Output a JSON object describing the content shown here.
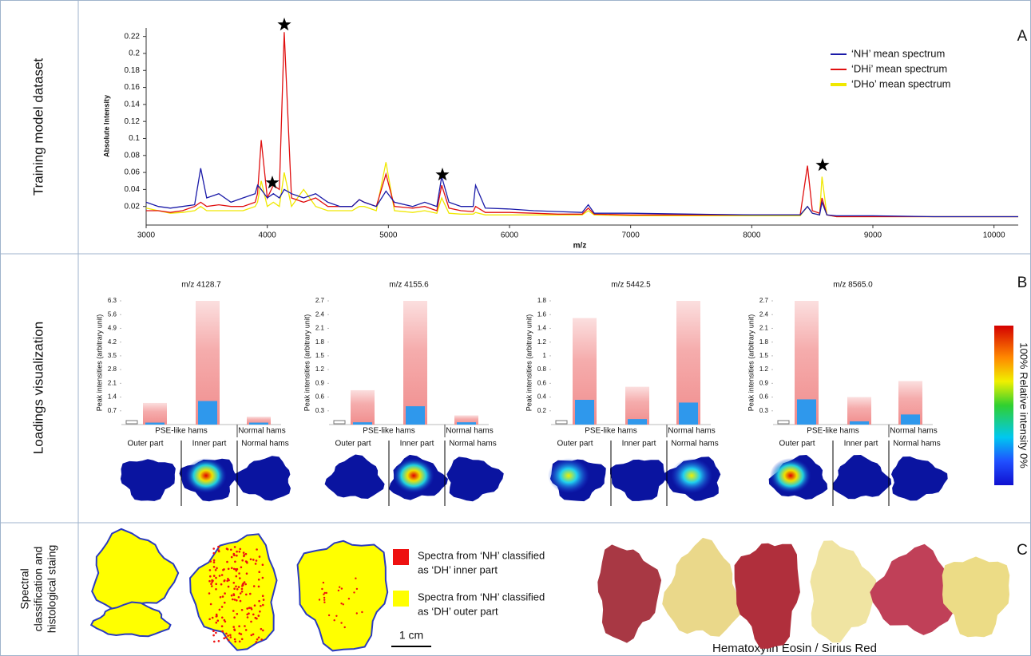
{
  "rows": [
    {
      "label": [
        "Training model dataset"
      ],
      "letter": "A"
    },
    {
      "label": [
        "Loadings visualization"
      ],
      "letter": "B"
    },
    {
      "label": [
        "Spectral",
        "classification and",
        "histological staing"
      ],
      "letter": "C"
    }
  ],
  "chart_data": [
    {
      "type": "line",
      "x_label": "m/z",
      "y_label": "Absolute Intensity",
      "xlim": [
        3000,
        10200
      ],
      "ylim": [
        0,
        0.23
      ],
      "xticks": [
        3000,
        4000,
        5000,
        6000,
        7000,
        8000,
        9000,
        10000
      ],
      "yticks": [
        0.02,
        0.04,
        0.06,
        0.08,
        0.1,
        0.12,
        0.14,
        0.16,
        0.18,
        0.2,
        0.22
      ],
      "x": [
        3000,
        3100,
        3200,
        3300,
        3400,
        3450,
        3500,
        3600,
        3700,
        3800,
        3900,
        3920,
        3950,
        4000,
        4050,
        4100,
        4140,
        4200,
        4300,
        4400,
        4500,
        4600,
        4700,
        4760,
        4800,
        4900,
        4980,
        5050,
        5200,
        5300,
        5400,
        5440,
        5500,
        5600,
        5700,
        5720,
        5800,
        6000,
        6200,
        6400,
        6600,
        6650,
        6700,
        7000,
        7500,
        8000,
        8400,
        8460,
        8500,
        8560,
        8580,
        8620,
        8700,
        9000,
        9500,
        10000,
        10200
      ],
      "series": [
        {
          "name": "‘NH’ mean spectrum",
          "color": "#1a1aa8",
          "values": [
            0.025,
            0.02,
            0.018,
            0.02,
            0.022,
            0.065,
            0.03,
            0.035,
            0.025,
            0.03,
            0.035,
            0.045,
            0.04,
            0.03,
            0.035,
            0.03,
            0.04,
            0.035,
            0.03,
            0.035,
            0.025,
            0.02,
            0.02,
            0.028,
            0.025,
            0.02,
            0.038,
            0.025,
            0.02,
            0.025,
            0.02,
            0.055,
            0.025,
            0.02,
            0.02,
            0.045,
            0.018,
            0.017,
            0.015,
            0.014,
            0.013,
            0.022,
            0.012,
            0.012,
            0.011,
            0.01,
            0.01,
            0.02,
            0.012,
            0.01,
            0.025,
            0.01,
            0.009,
            0.009,
            0.008,
            0.008,
            0.008
          ]
        },
        {
          "name": "‘DHi’ mean spectrum",
          "color": "#e01010",
          "values": [
            0.015,
            0.015,
            0.013,
            0.015,
            0.02,
            0.025,
            0.02,
            0.022,
            0.02,
            0.02,
            0.025,
            0.035,
            0.098,
            0.03,
            0.045,
            0.04,
            0.225,
            0.03,
            0.025,
            0.03,
            0.02,
            0.02,
            0.02,
            0.028,
            0.025,
            0.02,
            0.058,
            0.02,
            0.018,
            0.02,
            0.015,
            0.045,
            0.018,
            0.015,
            0.014,
            0.02,
            0.013,
            0.013,
            0.012,
            0.011,
            0.011,
            0.018,
            0.011,
            0.01,
            0.01,
            0.01,
            0.01,
            0.068,
            0.015,
            0.012,
            0.03,
            0.01,
            0.008,
            0.008,
            0.008,
            0.008,
            0.008
          ]
        },
        {
          "name": "‘DHo’ mean spectrum",
          "color": "#f0e800",
          "values": [
            0.018,
            0.015,
            0.012,
            0.013,
            0.015,
            0.02,
            0.015,
            0.015,
            0.015,
            0.015,
            0.02,
            0.025,
            0.05,
            0.02,
            0.025,
            0.02,
            0.06,
            0.02,
            0.04,
            0.02,
            0.015,
            0.015,
            0.015,
            0.02,
            0.02,
            0.015,
            0.072,
            0.015,
            0.013,
            0.015,
            0.012,
            0.03,
            0.012,
            0.011,
            0.011,
            0.013,
            0.01,
            0.01,
            0.01,
            0.01,
            0.01,
            0.015,
            0.01,
            0.009,
            0.009,
            0.009,
            0.009,
            0.02,
            0.012,
            0.01,
            0.055,
            0.01,
            0.008,
            0.008,
            0.008,
            0.008,
            0.008
          ]
        }
      ]
    },
    {
      "type": "bar",
      "title": "m/z 4128.7",
      "y_label": "Peak intensities (arbitrary unit)",
      "ylim": [
        0,
        6.3
      ],
      "yticks": [
        0.7,
        1.4,
        2.1,
        2.8,
        3.5,
        4.2,
        4.9,
        5.6,
        6.3
      ],
      "groups": [
        "PSE-like hams",
        "Normal hams"
      ],
      "categories": [
        "Outer part",
        "Inner part",
        "Normal hams"
      ],
      "series": [
        {
          "color": "#f4a3a3",
          "values": [
            1.1,
            6.3,
            0.4
          ]
        },
        {
          "color": "#2f98ec",
          "values": [
            0.1,
            1.2,
            0.1
          ]
        }
      ]
    },
    {
      "type": "bar",
      "title": "m/z 4155.6",
      "y_label": "Peak intensities (arbitrary unit)",
      "ylim": [
        0,
        2.7
      ],
      "yticks": [
        0.3,
        0.6,
        0.9,
        1.2,
        1.5,
        1.8,
        2.1,
        2.4,
        2.7
      ],
      "groups": [
        "PSE-like hams",
        "Normal hams"
      ],
      "categories": [
        "Outer part",
        "Inner part",
        "Normal hams"
      ],
      "series": [
        {
          "color": "#f4a3a3",
          "values": [
            0.75,
            2.7,
            0.2
          ]
        },
        {
          "color": "#2f98ec",
          "values": [
            0.05,
            0.4,
            0.05
          ]
        }
      ]
    },
    {
      "type": "bar",
      "title": "m/z 5442.5",
      "y_label": "Peak intensities (arbitrary unit)",
      "ylim": [
        0,
        1.8
      ],
      "yticks": [
        0.2,
        0.4,
        0.6,
        0.8,
        1,
        1.2,
        1.4,
        1.6,
        1.8
      ],
      "groups": [
        "PSE-like hams",
        "Normal hams"
      ],
      "categories": [
        "Outer part",
        "Inner part",
        "Normal hams"
      ],
      "series": [
        {
          "color": "#f4a3a3",
          "values": [
            1.55,
            0.55,
            1.8
          ]
        },
        {
          "color": "#2f98ec",
          "values": [
            0.36,
            0.08,
            0.32
          ]
        }
      ]
    },
    {
      "type": "bar",
      "title": "m/z 8565.0",
      "y_label": "Peak intensities (arbitrary unit)",
      "ylim": [
        0,
        2.7
      ],
      "yticks": [
        0.3,
        0.6,
        0.9,
        1.2,
        1.5,
        1.8,
        2.1,
        2.4,
        2.7
      ],
      "groups": [
        "PSE-like hams",
        "Normal hams"
      ],
      "categories": [
        "Outer part",
        "Inner part",
        "Normal hams"
      ],
      "series": [
        {
          "color": "#f4a3a3",
          "values": [
            2.7,
            0.6,
            0.95
          ]
        },
        {
          "color": "#2f98ec",
          "values": [
            0.55,
            0.07,
            0.22
          ]
        }
      ]
    }
  ],
  "colorbar_label": "100% Relative intensity 0%",
  "panel_c": {
    "legend": [
      {
        "color": "#ee1111",
        "text": [
          "Spectra from ‘NH’ classified",
          "as ‘DH’ inner part"
        ]
      },
      {
        "color": "#ffff00",
        "text": [
          "Spectra from ‘NH’ classified",
          "as ‘DH’ outer part"
        ]
      }
    ],
    "scale_bar": "1 cm",
    "caption": "Hematoxylin Eosin / Sirius Red"
  }
}
